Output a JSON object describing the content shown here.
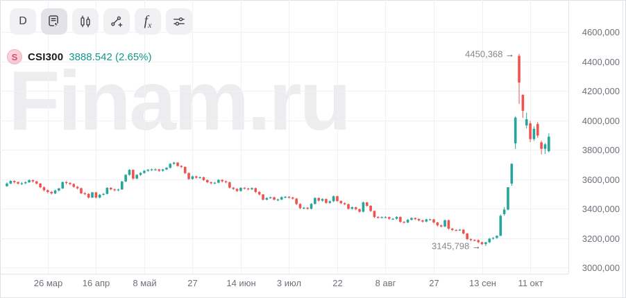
{
  "toolbar": {
    "timeframe_label": "D",
    "indicators_f": "f",
    "indicators_x": "x",
    "icons": {
      "active_panel": "panel-cursor-icon",
      "chart_type": "candles-icon",
      "drawing": "trend-line-plus-icon",
      "settings": "sliders-icon"
    }
  },
  "legend": {
    "badge": "S",
    "symbol": "CSI300",
    "value": "3888.542",
    "change": "(2.65%)"
  },
  "watermark": {
    "text": "Finam.ru"
  },
  "chart_data": {
    "type": "candlestick",
    "symbol": "CSI300",
    "timeframe": "D",
    "last_value": 3888.542,
    "change_percent": 2.65,
    "colors": {
      "up": "#26a69a",
      "down": "#ef5350",
      "grid": "#f0f1f4"
    },
    "y_axis": {
      "ticks": [
        {
          "label": "4600,000",
          "value": 4600
        },
        {
          "label": "4400,000",
          "value": 4400
        },
        {
          "label": "4200,000",
          "value": 4200
        },
        {
          "label": "4000,000",
          "value": 4000
        },
        {
          "label": "3800,000",
          "value": 3800
        },
        {
          "label": "3600,000",
          "value": 3600
        },
        {
          "label": "3400,000",
          "value": 3400
        },
        {
          "label": "3200,000",
          "value": 3200
        },
        {
          "label": "3000,000",
          "value": 3000
        }
      ]
    },
    "x_axis": {
      "ticks": [
        {
          "label": "26 мар",
          "index": 11
        },
        {
          "label": "16 апр",
          "index": 24
        },
        {
          "label": "8 май",
          "index": 37
        },
        {
          "label": "27",
          "index": 50
        },
        {
          "label": "14 июн",
          "index": 63
        },
        {
          "label": "3 июл",
          "index": 76
        },
        {
          "label": "22",
          "index": 89
        },
        {
          "label": "8 авг",
          "index": 102
        },
        {
          "label": "27",
          "index": 115
        },
        {
          "label": "13 сен",
          "index": 128
        },
        {
          "label": "11 окт",
          "index": 141
        }
      ]
    },
    "annotations": [
      {
        "text": "4450,368",
        "arrow": "→",
        "candle_index": 138,
        "value": 4450.368,
        "kind": "high"
      },
      {
        "text": "3145,798",
        "arrow": "→",
        "candle_index": 129,
        "value": 3145.798,
        "kind": "low"
      }
    ],
    "candles": [
      [
        3552,
        3578,
        3548,
        3570
      ],
      [
        3570,
        3592,
        3566,
        3588
      ],
      [
        3588,
        3592,
        3571,
        3580
      ],
      [
        3580,
        3585,
        3562,
        3570
      ],
      [
        3570,
        3580,
        3560,
        3572
      ],
      [
        3572,
        3586,
        3566,
        3579
      ],
      [
        3579,
        3599,
        3574,
        3593
      ],
      [
        3593,
        3597,
        3577,
        3585
      ],
      [
        3585,
        3589,
        3563,
        3570
      ],
      [
        3570,
        3574,
        3538,
        3545
      ],
      [
        3545,
        3551,
        3517,
        3525
      ],
      [
        3525,
        3530,
        3504,
        3513
      ],
      [
        3513,
        3520,
        3495,
        3503
      ],
      [
        3503,
        3528,
        3499,
        3523
      ],
      [
        3523,
        3541,
        3516,
        3537
      ],
      [
        3537,
        3584,
        3533,
        3580
      ],
      [
        3580,
        3586,
        3565,
        3574
      ],
      [
        3574,
        3580,
        3559,
        3567
      ],
      [
        3567,
        3572,
        3542,
        3548
      ],
      [
        3548,
        3554,
        3530,
        3538
      ],
      [
        3538,
        3543,
        3498,
        3504
      ],
      [
        3504,
        3512,
        3491,
        3500
      ],
      [
        3500,
        3505,
        3468,
        3475
      ],
      [
        3475,
        3514,
        3471,
        3510
      ],
      [
        3510,
        3515,
        3468,
        3475
      ],
      [
        3475,
        3499,
        3470,
        3494
      ],
      [
        3494,
        3506,
        3488,
        3500
      ],
      [
        3500,
        3545,
        3496,
        3541
      ],
      [
        3541,
        3546,
        3524,
        3531
      ],
      [
        3531,
        3537,
        3516,
        3525
      ],
      [
        3525,
        3535,
        3518,
        3530
      ],
      [
        3530,
        3588,
        3527,
        3584
      ],
      [
        3584,
        3634,
        3580,
        3629
      ],
      [
        3629,
        3668,
        3624,
        3663
      ],
      [
        3663,
        3666,
        3596,
        3604
      ],
      [
        3604,
        3634,
        3600,
        3629
      ],
      [
        3629,
        3647,
        3622,
        3642
      ],
      [
        3642,
        3661,
        3637,
        3657
      ],
      [
        3657,
        3669,
        3650,
        3664
      ],
      [
        3664,
        3672,
        3656,
        3666
      ],
      [
        3666,
        3674,
        3658,
        3666
      ],
      [
        3666,
        3671,
        3649,
        3657
      ],
      [
        3657,
        3670,
        3651,
        3666
      ],
      [
        3666,
        3682,
        3660,
        3677
      ],
      [
        3677,
        3709,
        3672,
        3704
      ],
      [
        3704,
        3718,
        3698,
        3712
      ],
      [
        3712,
        3716,
        3684,
        3690
      ],
      [
        3690,
        3694,
        3675,
        3683
      ],
      [
        3683,
        3687,
        3635,
        3641
      ],
      [
        3641,
        3646,
        3594,
        3601
      ],
      [
        3601,
        3624,
        3596,
        3619
      ],
      [
        3619,
        3623,
        3603,
        3610
      ],
      [
        3610,
        3618,
        3604,
        3613
      ],
      [
        3613,
        3617,
        3588,
        3594
      ],
      [
        3594,
        3599,
        3572,
        3579
      ],
      [
        3579,
        3584,
        3565,
        3572
      ],
      [
        3572,
        3581,
        3566,
        3576
      ],
      [
        3576,
        3600,
        3571,
        3595
      ],
      [
        3595,
        3599,
        3578,
        3585
      ],
      [
        3585,
        3590,
        3572,
        3579
      ],
      [
        3579,
        3583,
        3536,
        3542
      ],
      [
        3542,
        3547,
        3527,
        3534
      ],
      [
        3534,
        3539,
        3513,
        3520
      ],
      [
        3520,
        3546,
        3515,
        3541
      ],
      [
        3541,
        3545,
        3529,
        3536
      ],
      [
        3536,
        3541,
        3524,
        3531
      ],
      [
        3531,
        3544,
        3526,
        3539
      ],
      [
        3539,
        3543,
        3506,
        3513
      ],
      [
        3513,
        3518,
        3489,
        3496
      ],
      [
        3496,
        3500,
        3455,
        3461
      ],
      [
        3461,
        3477,
        3456,
        3472
      ],
      [
        3472,
        3482,
        3466,
        3477
      ],
      [
        3477,
        3481,
        3454,
        3461
      ],
      [
        3461,
        3467,
        3451,
        3462
      ],
      [
        3462,
        3483,
        3457,
        3478
      ],
      [
        3478,
        3486,
        3471,
        3480
      ],
      [
        3480,
        3485,
        3468,
        3475
      ],
      [
        3475,
        3480,
        3461,
        3468
      ],
      [
        3468,
        3472,
        3424,
        3431
      ],
      [
        3431,
        3436,
        3396,
        3403
      ],
      [
        3403,
        3411,
        3395,
        3406
      ],
      [
        3406,
        3410,
        3392,
        3399
      ],
      [
        3399,
        3437,
        3394,
        3432
      ],
      [
        3432,
        3477,
        3428,
        3472
      ],
      [
        3472,
        3476,
        3448,
        3454
      ],
      [
        3454,
        3470,
        3447,
        3465
      ],
      [
        3465,
        3469,
        3432,
        3439
      ],
      [
        3439,
        3455,
        3433,
        3450
      ],
      [
        3450,
        3489,
        3444,
        3484
      ],
      [
        3484,
        3488,
        3445,
        3451
      ],
      [
        3451,
        3456,
        3430,
        3437
      ],
      [
        3437,
        3442,
        3423,
        3430
      ],
      [
        3430,
        3434,
        3392,
        3399
      ],
      [
        3399,
        3414,
        3393,
        3409
      ],
      [
        3409,
        3413,
        3389,
        3396
      ],
      [
        3396,
        3400,
        3372,
        3379
      ],
      [
        3379,
        3447,
        3374,
        3442
      ],
      [
        3442,
        3446,
        3412,
        3419
      ],
      [
        3419,
        3423,
        3377,
        3384
      ],
      [
        3384,
        3388,
        3336,
        3343
      ],
      [
        3343,
        3349,
        3333,
        3340
      ],
      [
        3340,
        3347,
        3334,
        3342
      ],
      [
        3342,
        3348,
        3335,
        3342
      ],
      [
        3342,
        3346,
        3324,
        3331
      ],
      [
        3331,
        3336,
        3323,
        3331
      ],
      [
        3331,
        3348,
        3326,
        3343
      ],
      [
        3343,
        3347,
        3303,
        3310
      ],
      [
        3310,
        3315,
        3299,
        3306
      ],
      [
        3306,
        3329,
        3301,
        3324
      ],
      [
        3324,
        3341,
        3319,
        3336
      ],
      [
        3336,
        3340,
        3322,
        3329
      ],
      [
        3329,
        3334,
        3313,
        3320
      ],
      [
        3320,
        3325,
        3305,
        3312
      ],
      [
        3312,
        3331,
        3307,
        3327
      ],
      [
        3327,
        3332,
        3319,
        3327
      ],
      [
        3327,
        3331,
        3299,
        3306
      ],
      [
        3306,
        3310,
        3279,
        3286
      ],
      [
        3286,
        3291,
        3271,
        3278
      ],
      [
        3278,
        3325,
        3274,
        3321
      ],
      [
        3321,
        3325,
        3257,
        3264
      ],
      [
        3264,
        3269,
        3248,
        3255
      ],
      [
        3255,
        3260,
        3246,
        3254
      ],
      [
        3254,
        3262,
        3249,
        3257
      ],
      [
        3257,
        3261,
        3224,
        3231
      ],
      [
        3231,
        3235,
        3186,
        3193
      ],
      [
        3193,
        3198,
        3179,
        3187
      ],
      [
        3187,
        3192,
        3178,
        3186
      ],
      [
        3186,
        3190,
        3165,
        3172
      ],
      [
        3172,
        3176,
        3152,
        3159
      ],
      [
        3159,
        3175,
        3145.798,
        3171
      ],
      [
        3171,
        3200,
        3166,
        3196
      ],
      [
        3196,
        3206,
        3189,
        3201
      ],
      [
        3201,
        3219,
        3195,
        3215
      ],
      [
        3215,
        3358,
        3214,
        3351
      ],
      [
        3363,
        3410,
        3352,
        3393
      ],
      [
        3393,
        3546,
        3388,
        3545
      ],
      [
        3570,
        3708,
        3555,
        3704
      ],
      [
        3843,
        4027,
        3805,
        4018
      ],
      [
        4437,
        4450.368,
        4111,
        4256
      ],
      [
        4172,
        4177,
        4016,
        4064
      ],
      [
        3965,
        4052,
        3944,
        4007
      ],
      [
        3979,
        3995,
        3852,
        3872
      ],
      [
        3872,
        3958,
        3860,
        3942
      ],
      [
        3975,
        3988,
        3880,
        3896
      ],
      [
        3850,
        3862,
        3768,
        3806
      ],
      [
        3806,
        3845,
        3772,
        3836
      ],
      [
        3790,
        3912,
        3781,
        3888.542
      ]
    ]
  }
}
